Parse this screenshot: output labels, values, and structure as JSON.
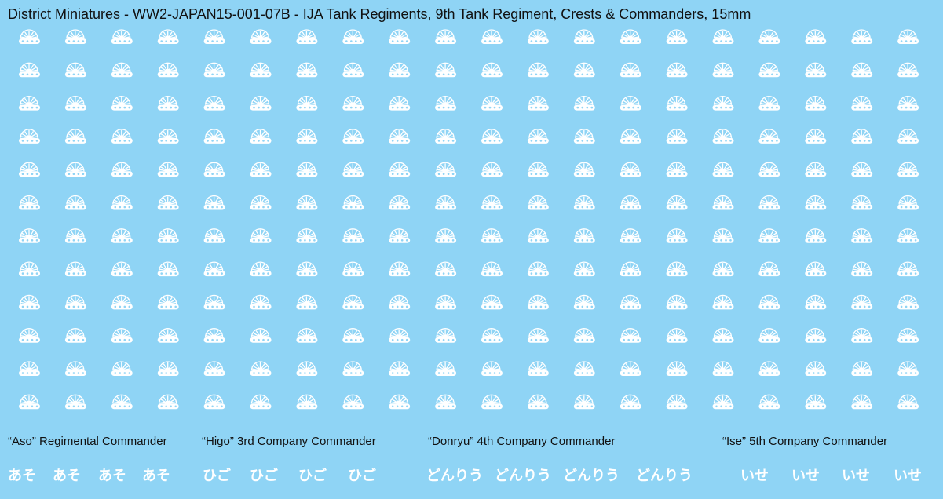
{
  "header": {
    "title": "District Miniatures - WW2-JAPAN15-001-07B - IJA Tank Regiments, 9th Tank Regiment, Crests & Commanders, 15mm"
  },
  "groups": [
    {
      "label": "“Aso” Regimental Commander",
      "kana": [
        "あそ",
        "あそ",
        "あそ",
        "あそ"
      ]
    },
    {
      "label": "“Higo” 3rd Company Commander",
      "kana": [
        "ひご",
        "ひご",
        "ひご",
        "ひご"
      ]
    },
    {
      "label": "“Donryu” 4th Company Commander",
      "kana": [
        "どんりう",
        "どんりう",
        "どんりう",
        "どんりう"
      ]
    },
    {
      "label": "“Ise” 5th Company Commander",
      "kana": [
        "いせ",
        "いせ",
        "いせ",
        "いせ"
      ]
    }
  ]
}
